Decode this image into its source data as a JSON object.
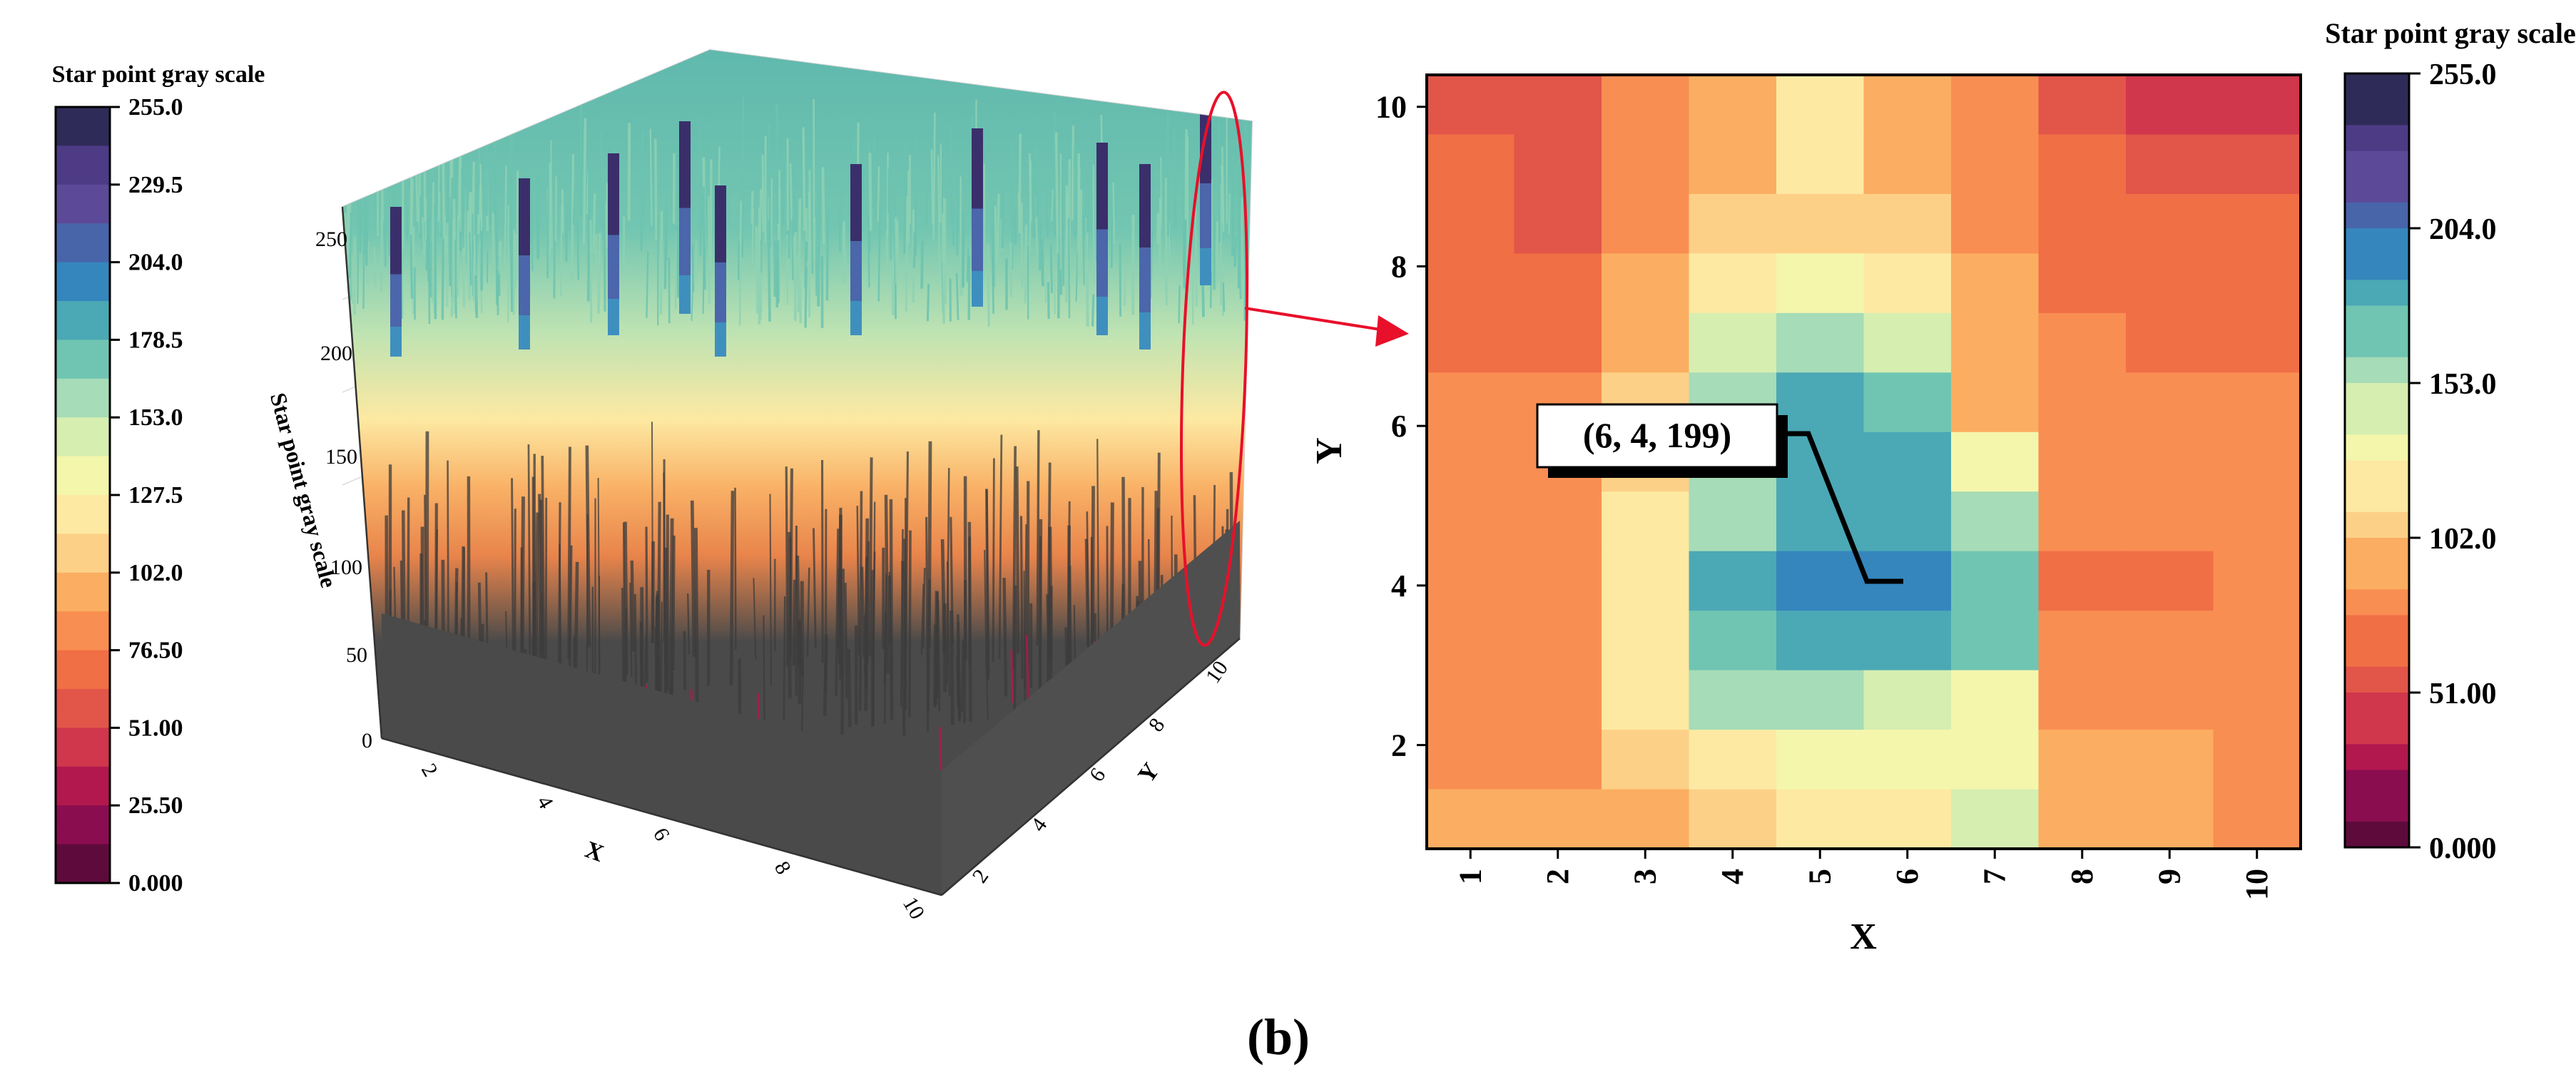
{
  "figure": {
    "panel_label": "(b)",
    "palette": [
      "#5e0b3c",
      "#8a0d4f",
      "#b2184e",
      "#d0364c",
      "#e25549",
      "#f06f45",
      "#f98e52",
      "#fbae61",
      "#fdd088",
      "#fde9a2",
      "#f4f6ac",
      "#d6eeb0",
      "#a6dcb7",
      "#70c5b2",
      "#4ba8b5",
      "#3586bd",
      "#4865aa",
      "#5c4a98",
      "#4e3b86",
      "#2e2b58"
    ]
  },
  "chart_data": [
    {
      "id": "surface-3d",
      "type": "surface",
      "zlabel": "Star point gray scale",
      "xlabel": "X",
      "ylabel": "Y",
      "x_ticks": [
        "2",
        "4",
        "6",
        "8",
        "10"
      ],
      "y_ticks": [
        "2",
        "4",
        "6",
        "8",
        "10"
      ],
      "z_ticks": [
        "0",
        "50",
        "100",
        "150",
        "200",
        "250"
      ],
      "zlim": [
        0,
        255
      ],
      "colorbar": {
        "title": "Star point gray scale",
        "ticks": [
          "255.0",
          "229.5",
          "204.0",
          "178.5",
          "153.0",
          "127.5",
          "102.0",
          "76.50",
          "51.00",
          "25.50",
          "0.000"
        ]
      },
      "annotation": "highlighted edge region (red ellipse) magnified in heatmap"
    },
    {
      "id": "heatmap",
      "type": "heatmap",
      "xlabel": "X",
      "ylabel": "Y",
      "x_categories": [
        "1",
        "2",
        "3",
        "4",
        "5",
        "6",
        "7",
        "8",
        "9",
        "10"
      ],
      "y_tick_labels": [
        "2",
        "4",
        "6",
        "8",
        "10"
      ],
      "y_range": [
        0.7,
        10.4
      ],
      "colorbar": {
        "title": "Star point gray scale",
        "ticks": [
          "255.0",
          "204.0",
          "153.0",
          "102.0",
          "51.00",
          "0.000"
        ],
        "range": [
          0,
          255
        ]
      },
      "grid_rows_top_to_bottom": [
        [
          55,
          55,
          80,
          100,
          115,
          100,
          80,
          60,
          50,
          50
        ],
        [
          70,
          62,
          80,
          100,
          115,
          100,
          82,
          70,
          62,
          62
        ],
        [
          68,
          62,
          80,
          105,
          110,
          105,
          85,
          72,
          65,
          65
        ],
        [
          70,
          70,
          90,
          120,
          128,
          120,
          90,
          75,
          68,
          68
        ],
        [
          75,
          75,
          100,
          150,
          160,
          150,
          100,
          78,
          75,
          75
        ],
        [
          80,
          78,
          110,
          160,
          180,
          170,
          100,
          78,
          78,
          80
        ],
        [
          85,
          80,
          110,
          160,
          190,
          180,
          130,
          80,
          80,
          85
        ],
        [
          80,
          78,
          115,
          165,
          190,
          190,
          165,
          80,
          78,
          78
        ],
        [
          78,
          85,
          125,
          180,
          195,
          199,
          175,
          70,
          65,
          78
        ],
        [
          85,
          85,
          125,
          170,
          180,
          190,
          175,
          78,
          78,
          80
        ],
        [
          85,
          88,
          115,
          160,
          165,
          150,
          140,
          88,
          88,
          85
        ],
        [
          88,
          88,
          102,
          125,
          135,
          138,
          140,
          90,
          100,
          85
        ],
        [
          90,
          90,
          100,
          112,
          115,
          125,
          145,
          90,
          90,
          88
        ]
      ],
      "annotation": {
        "label": "(6, 4, 199)",
        "x": 6,
        "y": 4,
        "value": 199
      }
    }
  ]
}
